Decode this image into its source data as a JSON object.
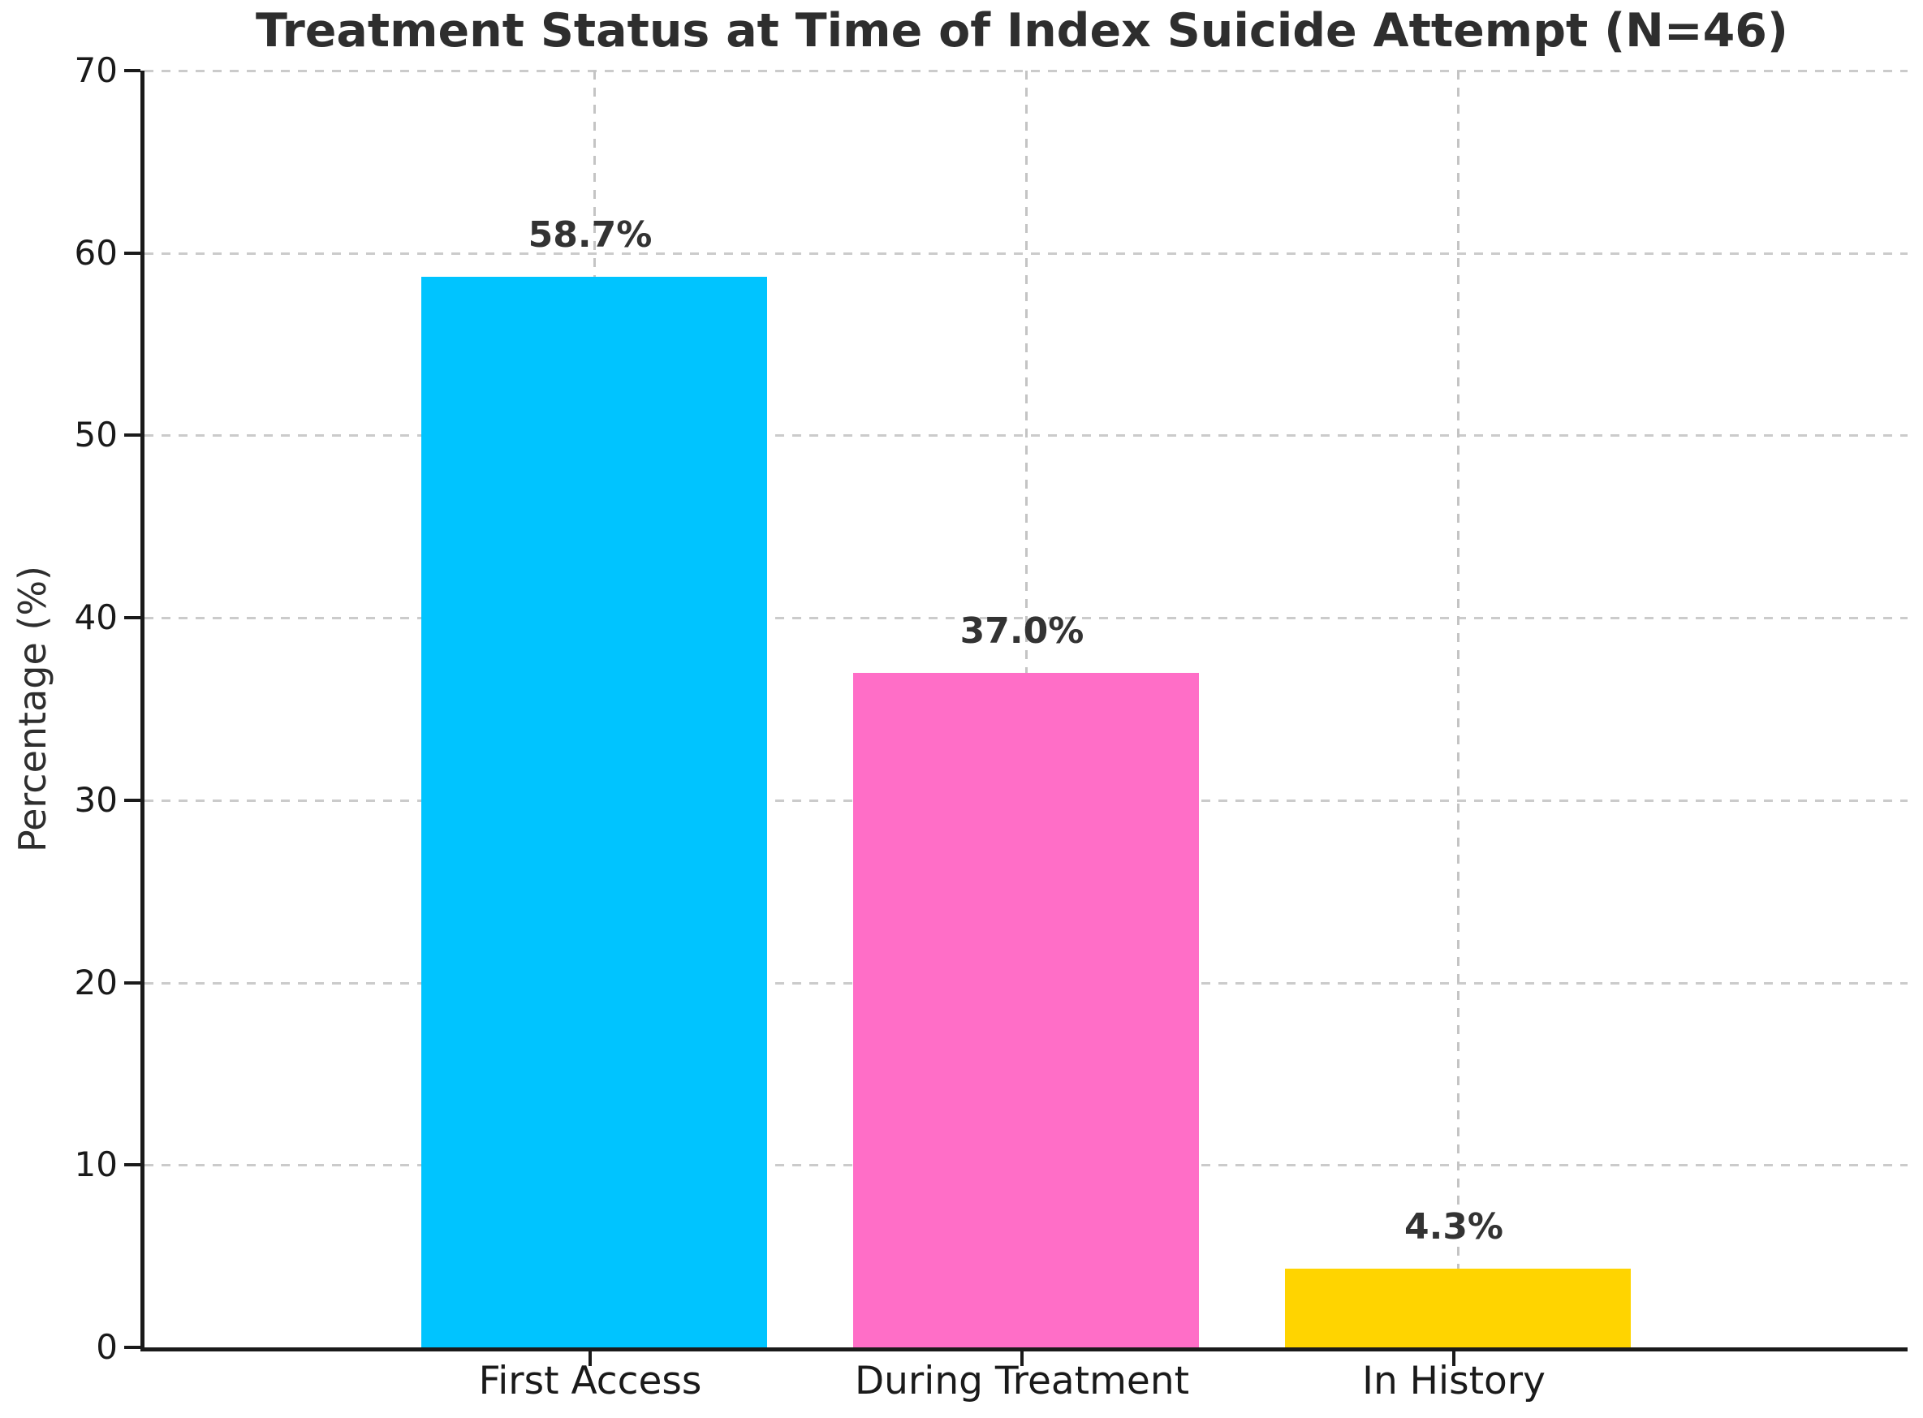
{
  "chart_data": {
    "type": "bar",
    "title": "Treatment Status at Time of Index Suicide Attempt (N=46)",
    "xlabel": "",
    "ylabel": "Percentage (%)",
    "categories": [
      "First Access",
      "During Treatment",
      "In History"
    ],
    "values": [
      58.7,
      37.0,
      4.3
    ],
    "value_labels": [
      "58.7%",
      "37.0%",
      "4.3%"
    ],
    "bar_colors": [
      "#00C4FF",
      "#FF6EC7",
      "#FFD400"
    ],
    "ylim": [
      0,
      70
    ],
    "yticks": [
      0,
      10,
      20,
      30,
      40,
      50,
      60,
      70
    ],
    "grid": "dashed horizontal and vertical gridlines, light gray, drawn behind bars",
    "legend": "none",
    "text_color": "#2e2e2e",
    "grid_color": "#cbcbcb",
    "spine_color": "#1a1a1a",
    "background_color": "#ffffff"
  }
}
